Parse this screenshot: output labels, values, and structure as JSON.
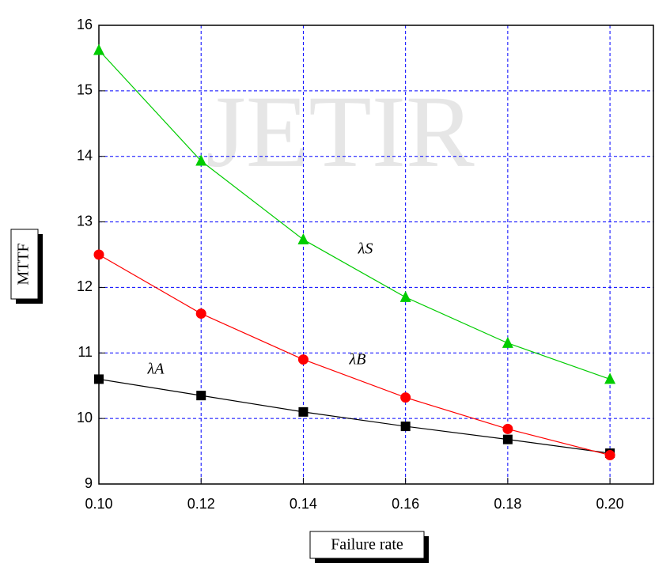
{
  "chart_data": {
    "type": "line",
    "watermark": "JETIR",
    "x_label": "Failure rate",
    "y_label": "MTTF",
    "x": [
      0.1,
      0.12,
      0.14,
      0.16,
      0.18,
      0.2
    ],
    "series": [
      {
        "name": "λA",
        "color": "#000000",
        "marker": "square",
        "values": [
          10.6,
          10.35,
          10.1,
          9.88,
          9.68,
          9.47
        ]
      },
      {
        "name": "λB",
        "color": "#ff0000",
        "marker": "circle",
        "values": [
          12.5,
          11.6,
          10.9,
          10.32,
          9.84,
          9.44
        ]
      },
      {
        "name": "λS",
        "color": "#00cc00",
        "marker": "triangle",
        "values": [
          15.62,
          13.93,
          12.73,
          11.85,
          11.15,
          10.6
        ]
      }
    ],
    "xlim": [
      0.1,
      0.2085
    ],
    "ylim": [
      9,
      16
    ],
    "xticks": [
      {
        "value": 0.1,
        "label": "0.10"
      },
      {
        "value": 0.12,
        "label": "0.12"
      },
      {
        "value": 0.14,
        "label": "0.14"
      },
      {
        "value": 0.16,
        "label": "0.16"
      },
      {
        "value": 0.18,
        "label": "0.18"
      },
      {
        "value": 0.2,
        "label": "0.20"
      }
    ],
    "yticks": [
      9,
      10,
      11,
      12,
      13,
      14,
      15,
      16
    ],
    "grid": true
  }
}
